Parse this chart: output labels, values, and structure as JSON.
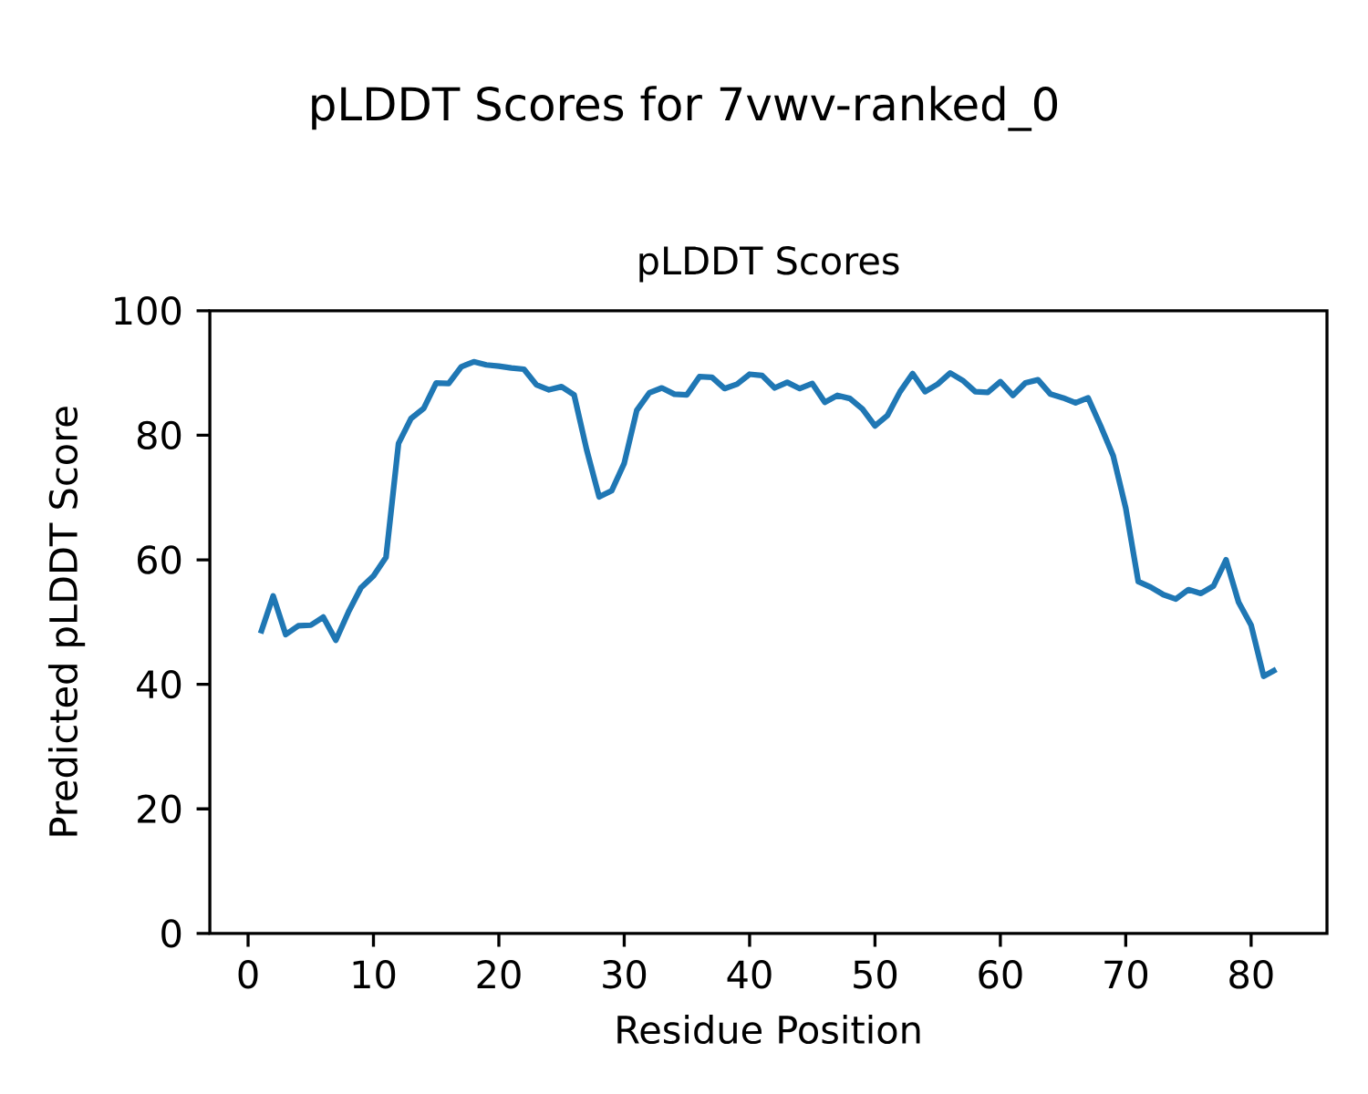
{
  "chart_data": {
    "type": "line",
    "title": "pLDDT Scores for 7vwv-ranked_0",
    "subtitle": "pLDDT Scores",
    "xlabel": "Residue Position",
    "ylabel": "Predicted pLDDT Score",
    "x": [
      1,
      2,
      3,
      4,
      5,
      6,
      7,
      8,
      9,
      10,
      11,
      12,
      13,
      14,
      15,
      16,
      17,
      18,
      19,
      20,
      21,
      22,
      23,
      24,
      25,
      26,
      27,
      28,
      29,
      30,
      31,
      32,
      33,
      34,
      35,
      36,
      37,
      38,
      39,
      40,
      41,
      42,
      43,
      44,
      45,
      46,
      47,
      48,
      49,
      50,
      51,
      52,
      53,
      54,
      55,
      56,
      57,
      58,
      59,
      60,
      61,
      62,
      63,
      64,
      65,
      66,
      67,
      68,
      69,
      70,
      71,
      72,
      73,
      74,
      75,
      76,
      77,
      78,
      79,
      80,
      81,
      82
    ],
    "series": [
      {
        "color": "#1f77b4",
        "values": [
          48.2,
          54.2,
          48.0,
          49.4,
          49.5,
          50.8,
          47.1,
          51.6,
          55.5,
          57.4,
          60.4,
          78.7,
          82.7,
          84.3,
          88.4,
          88.3,
          91.0,
          91.8,
          91.3,
          91.1,
          90.8,
          90.6,
          88.1,
          87.3,
          87.8,
          86.5,
          77.7,
          70.1,
          71.1,
          75.5,
          84.0,
          86.8,
          87.6,
          86.6,
          86.5,
          89.4,
          89.3,
          87.5,
          88.2,
          89.8,
          89.6,
          87.6,
          88.5,
          87.5,
          88.3,
          85.3,
          86.4,
          85.9,
          84.2,
          81.5,
          83.2,
          87.0,
          89.9,
          87.0,
          88.2,
          90.0,
          88.8,
          87.0,
          86.9,
          88.6,
          86.4,
          88.4,
          88.9,
          86.6,
          86.0,
          85.2,
          86.0,
          81.5,
          76.7,
          68.3,
          56.5,
          55.6,
          54.4,
          53.7,
          55.2,
          54.6,
          55.8,
          60.0,
          53.2,
          49.5,
          41.3,
          42.4
        ]
      }
    ],
    "xlim": [
      -3.05,
      86.05
    ],
    "ylim": [
      0,
      100
    ],
    "xticks": [
      0,
      10,
      20,
      30,
      40,
      50,
      60,
      70,
      80
    ],
    "yticks": [
      0,
      20,
      40,
      60,
      80,
      100
    ],
    "grid": false,
    "legend": false,
    "marker": "none",
    "line_style": "solid"
  }
}
